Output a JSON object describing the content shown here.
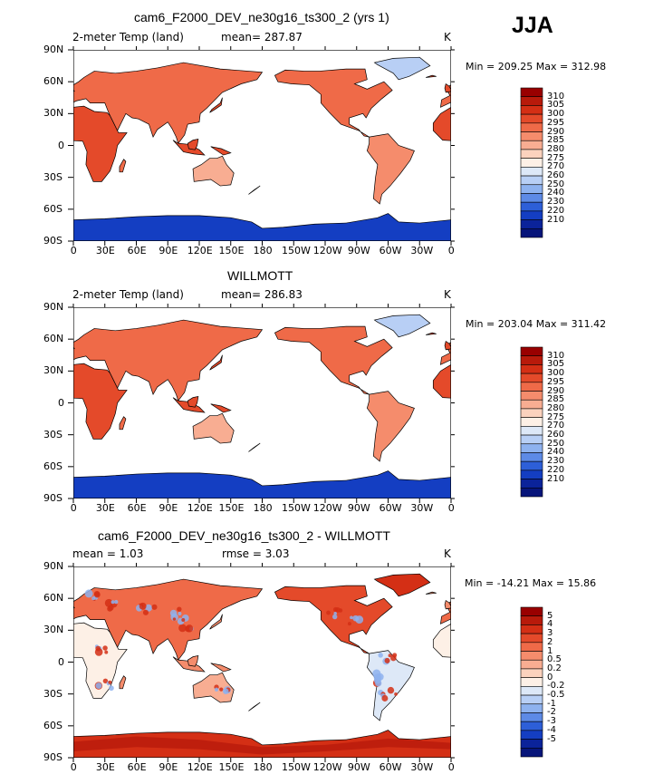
{
  "season": "JJA",
  "panels": [
    {
      "title": "cam6_F2000_DEV_ne30g16_ts300_2 (yrs 1)",
      "left_label": "2-meter Temp (land)",
      "mid_label": "mean= 287.87",
      "units": "K",
      "min_max": "Min = 209.25 Max = 312.98",
      "colorbar": [
        "310",
        "305",
        "300",
        "295",
        "290",
        "285",
        "280",
        "275",
        "270",
        "260",
        "250",
        "240",
        "230",
        "220",
        "210"
      ],
      "colors": [
        "#990000",
        "#b81a0b",
        "#d42f15",
        "#e44a2a",
        "#ef6a48",
        "#f58c6c",
        "#f8ad92",
        "#fbd2bd",
        "#fdf0e6",
        "#dde8f7",
        "#b8cff5",
        "#8eb2ef",
        "#5d8ae6",
        "#2d5fd8",
        "#143ec2",
        "#0b239a",
        "#07157a"
      ],
      "kind": "abs"
    },
    {
      "title": "WILLMOTT",
      "left_label": "2-meter Temp (land)",
      "mid_label": "mean= 286.83",
      "units": "K",
      "min_max": "Min = 203.04 Max = 311.42",
      "colorbar": [
        "310",
        "305",
        "300",
        "295",
        "290",
        "285",
        "280",
        "275",
        "270",
        "260",
        "250",
        "240",
        "230",
        "220",
        "210"
      ],
      "colors": [
        "#990000",
        "#b81a0b",
        "#d42f15",
        "#e44a2a",
        "#ef6a48",
        "#f58c6c",
        "#f8ad92",
        "#fbd2bd",
        "#fdf0e6",
        "#dde8f7",
        "#b8cff5",
        "#8eb2ef",
        "#5d8ae6",
        "#2d5fd8",
        "#143ec2",
        "#0b239a",
        "#07157a"
      ],
      "kind": "abs"
    },
    {
      "title": "cam6_F2000_DEV_ne30g16_ts300_2 - WILLMOTT",
      "left_label": "mean =     1.03",
      "mid_label": "rmse =     3.03",
      "units": "K",
      "min_max": "Min = -14.21 Max =  15.86",
      "colorbar": [
        "5",
        "4",
        "3",
        "2",
        "1",
        "0.5",
        "0.2",
        "0",
        "-0.2",
        "-0.5",
        "-1",
        "-2",
        "-3",
        "-4",
        "-5"
      ],
      "colors": [
        "#990000",
        "#b81a0b",
        "#d42f15",
        "#e44a2a",
        "#ef6a48",
        "#f58c6c",
        "#f8ad92",
        "#fbd2bd",
        "#fdf0e6",
        "#dde8f7",
        "#b8cff5",
        "#8eb2ef",
        "#5d8ae6",
        "#2d5fd8",
        "#143ec2",
        "#0b239a",
        "#07157a"
      ],
      "kind": "diff"
    }
  ],
  "lat_labels": [
    "90N",
    "60N",
    "30N",
    "0",
    "30S",
    "60S",
    "90S"
  ],
  "lon_labels": [
    "0",
    "30E",
    "60E",
    "90E",
    "120E",
    "150E",
    "180",
    "150W",
    "120W",
    "90W",
    "60W",
    "30W",
    "0"
  ],
  "chart_data": [
    {
      "type": "heatmap",
      "title": "cam6_F2000_DEV_ne30g16_ts300_2 (yrs 1)",
      "variable": "2-meter Temp (land)",
      "units": "K",
      "mean": 287.87,
      "min": 209.25,
      "max": 312.98,
      "x": "longitude 0 to 360",
      "y": "latitude 90S to 90N",
      "levels": [
        210,
        220,
        230,
        240,
        250,
        260,
        270,
        275,
        280,
        285,
        290,
        295,
        300,
        305,
        310
      ]
    },
    {
      "type": "heatmap",
      "title": "WILLMOTT",
      "variable": "2-meter Temp (land)",
      "units": "K",
      "mean": 286.83,
      "min": 203.04,
      "max": 311.42,
      "levels": [
        210,
        220,
        230,
        240,
        250,
        260,
        270,
        275,
        280,
        285,
        290,
        295,
        300,
        305,
        310
      ]
    },
    {
      "type": "heatmap",
      "title": "cam6_F2000_DEV_ne30g16_ts300_2 - WILLMOTT",
      "units": "K",
      "mean": 1.03,
      "rmse": 3.03,
      "min": -14.21,
      "max": 15.86,
      "levels": [
        -5,
        -4,
        -3,
        -2,
        -1,
        -0.5,
        -0.2,
        0,
        0.2,
        0.5,
        1,
        2,
        3,
        4,
        5
      ]
    }
  ]
}
